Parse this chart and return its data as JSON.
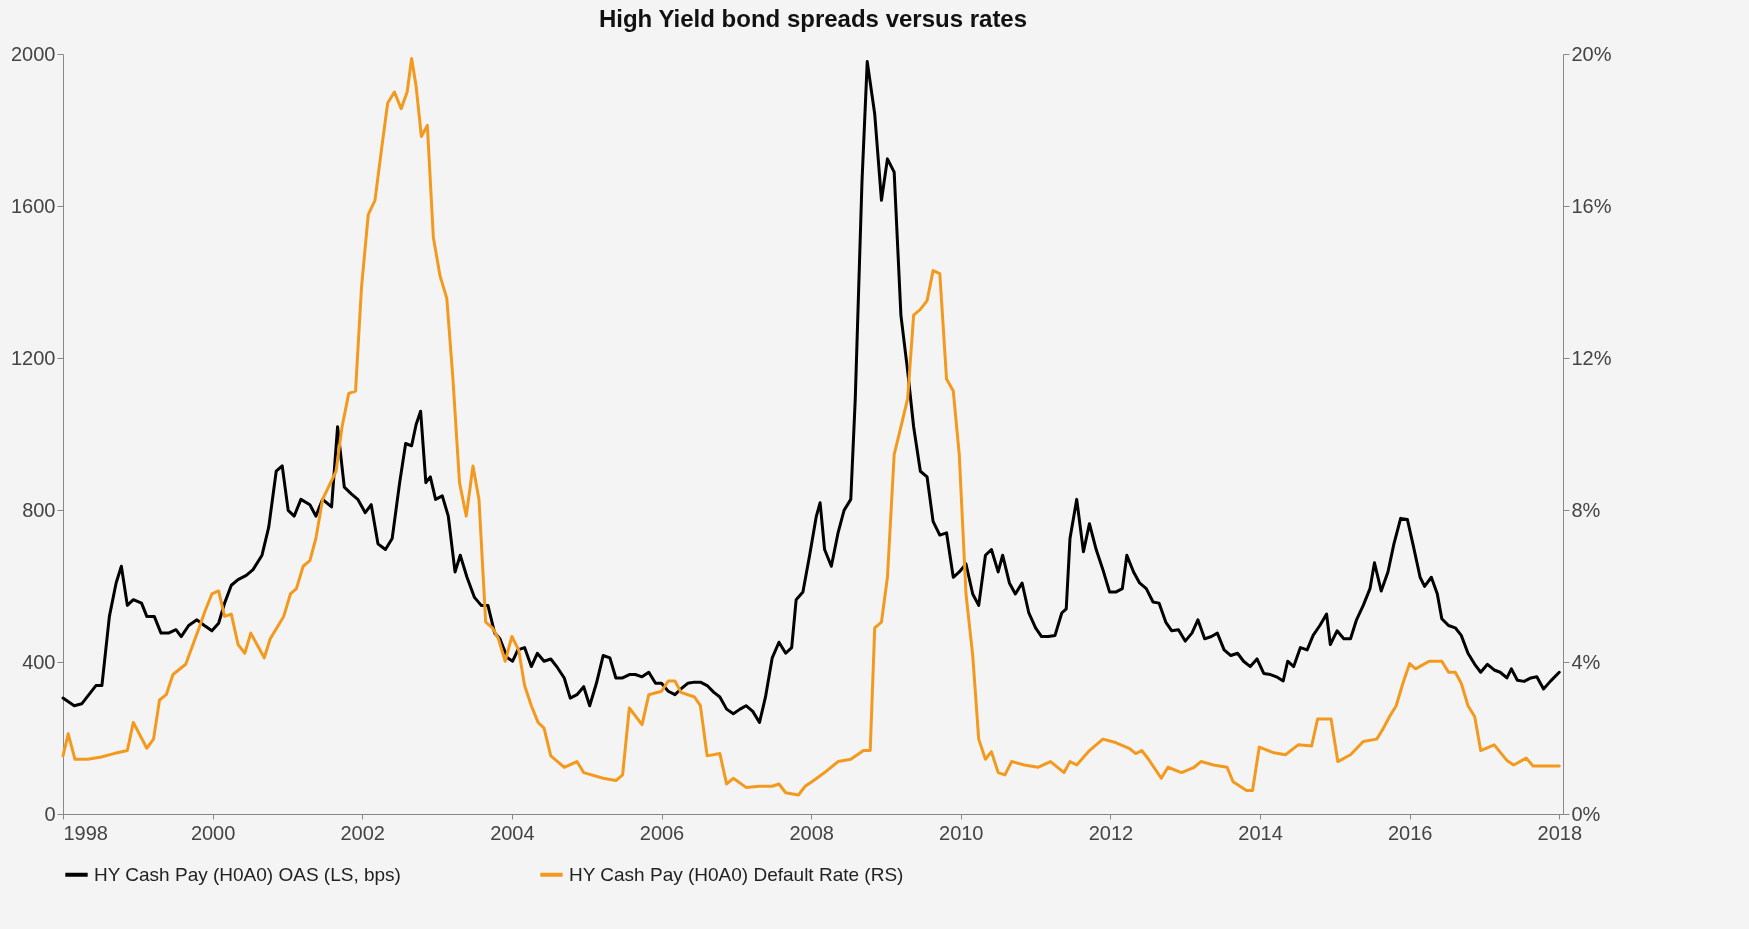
{
  "chart_data": {
    "type": "line",
    "title": "High Yield bond spreads versus rates",
    "xlim": [
      1998,
      2018.05
    ],
    "xticks": [
      1998,
      2000,
      2002,
      2004,
      2006,
      2008,
      2010,
      2012,
      2014,
      2016,
      2018
    ],
    "ylim": [
      0,
      2000
    ],
    "yticks": [
      0,
      400,
      800,
      1200,
      1600,
      2000
    ],
    "y2lim": [
      0,
      20
    ],
    "y2ticks": [
      {
        "value": 0,
        "label": "0%"
      },
      {
        "value": 4,
        "label": "4%"
      },
      {
        "value": 8,
        "label": "8%"
      },
      {
        "value": 12,
        "label": "12%"
      },
      {
        "value": 16,
        "label": "16%"
      },
      {
        "value": 20,
        "label": "20%"
      }
    ],
    "grid": false,
    "legend": "bottom",
    "marker": "none",
    "line_style": "solid",
    "series": [
      {
        "name": "HY Cash Pay (H0A0) OAS (LS, bps)",
        "color": "#000000",
        "x": [
          1998.0,
          1998.15,
          1998.25,
          1998.44,
          1998.52,
          1998.62,
          1998.71,
          1998.78,
          1998.86,
          1998.94,
          1999.05,
          1999.12,
          1999.22,
          1999.31,
          1999.41,
          1999.51,
          1999.58,
          1999.68,
          1999.79,
          1999.89,
          1999.99,
          2000.08,
          2000.16,
          2000.25,
          2000.34,
          2000.45,
          2000.54,
          2000.66,
          2000.75,
          2000.85,
          2000.93,
          2001.01,
          2001.09,
          2001.18,
          2001.3,
          2001.38,
          2001.47,
          2001.59,
          2001.67,
          2001.76,
          2001.85,
          2001.94,
          2002.04,
          2002.12,
          2002.21,
          2002.31,
          2002.4,
          2002.5,
          2002.58,
          2002.66,
          2002.72,
          2002.78,
          2002.85,
          2002.91,
          2002.98,
          2003.07,
          2003.15,
          2003.24,
          2003.31,
          2003.4,
          2003.5,
          2003.59,
          2003.68,
          2003.77,
          2003.84,
          2003.94,
          2004.01,
          2004.08,
          2004.17,
          2004.26,
          2004.34,
          2004.43,
          2004.52,
          2004.61,
          2004.7,
          2004.78,
          2004.87,
          2004.96,
          2005.04,
          2005.13,
          2005.22,
          2005.31,
          2005.39,
          2005.48,
          2005.57,
          2005.65,
          2005.74,
          2005.83,
          2005.92,
          2006.0,
          2006.09,
          2006.18,
          2006.26,
          2006.35,
          2006.44,
          2006.52,
          2006.61,
          2006.7,
          2006.78,
          2006.87,
          2006.96,
          2007.05,
          2007.13,
          2007.22,
          2007.31,
          2007.39,
          2007.48,
          2007.57,
          2007.66,
          2007.74,
          2007.8,
          2007.89,
          2007.98,
          2008.07,
          2008.12,
          2008.18,
          2008.27,
          2008.36,
          2008.44,
          2008.53,
          2008.59,
          2008.68,
          2008.75,
          2008.85,
          2008.94,
          2009.02,
          2009.11,
          2009.2,
          2009.29,
          2009.37,
          2009.46,
          2009.55,
          2009.63,
          2009.72,
          2009.81,
          2009.9,
          2009.98,
          2010.07,
          2010.16,
          2010.24,
          2010.33,
          2010.41,
          2010.5,
          2010.56,
          2010.65,
          2010.73,
          2010.82,
          2010.91,
          2011.0,
          2011.08,
          2011.17,
          2011.26,
          2011.35,
          2011.41,
          2011.46,
          2011.55,
          2011.64,
          2011.72,
          2011.81,
          2011.9,
          2011.99,
          2012.07,
          2012.16,
          2012.22,
          2012.31,
          2012.39,
          2012.48,
          2012.57,
          2012.65,
          2012.74,
          2012.82,
          2012.91,
          2013.0,
          2013.09,
          2013.17,
          2013.26,
          2013.35,
          2013.43,
          2013.52,
          2013.61,
          2013.7,
          2013.78,
          2013.87,
          2013.96,
          2014.05,
          2014.14,
          2014.22,
          2014.31,
          2014.37,
          2014.45,
          2014.54,
          2014.63,
          2014.71,
          2014.8,
          2014.89,
          2014.94,
          2015.03,
          2015.12,
          2015.21,
          2015.29,
          2015.38,
          2015.47,
          2015.53,
          2015.62,
          2015.71,
          2015.79,
          2015.88,
          2015.97,
          2016.05,
          2016.14,
          2016.2,
          2016.29,
          2016.37,
          2016.43,
          2016.52,
          2016.61,
          2016.69,
          2016.78,
          2016.87,
          2016.95,
          2017.04,
          2017.13,
          2017.21,
          2017.3,
          2017.36,
          2017.44,
          2017.53,
          2017.62,
          2017.7,
          2017.79,
          2017.88,
          2018.0
        ],
        "values": [
          305,
          285,
          290,
          338,
          338,
          520,
          608,
          652,
          549,
          564,
          555,
          520,
          520,
          476,
          476,
          485,
          467,
          496,
          511,
          496,
          482,
          502,
          555,
          602,
          617,
          628,
          643,
          681,
          755,
          902,
          916,
          799,
          784,
          828,
          814,
          784,
          828,
          808,
          1019,
          860,
          843,
          828,
          793,
          814,
          711,
          696,
          725,
          872,
          975,
          969,
          1025,
          1060,
          872,
          887,
          828,
          837,
          784,
          637,
          681,
          623,
          570,
          549,
          549,
          476,
          461,
          411,
          402,
          432,
          438,
          388,
          423,
          402,
          408,
          385,
          358,
          305,
          314,
          335,
          285,
          344,
          417,
          411,
          358,
          358,
          367,
          367,
          361,
          373,
          344,
          344,
          323,
          314,
          329,
          344,
          347,
          347,
          338,
          320,
          308,
          276,
          264,
          276,
          285,
          270,
          241,
          308,
          411,
          452,
          423,
          438,
          564,
          584,
          681,
          784,
          819,
          696,
          652,
          740,
          799,
          828,
          1093,
          1665,
          1980,
          1842,
          1615,
          1724,
          1689,
          1313,
          1166,
          1019,
          902,
          887,
          770,
          734,
          740,
          623,
          637,
          658,
          579,
          549,
          681,
          696,
          637,
          681,
          608,
          579,
          608,
          529,
          490,
          467,
          467,
          470,
          529,
          540,
          725,
          828,
          690,
          764,
          696,
          643,
          584,
          584,
          593,
          681,
          637,
          608,
          593,
          558,
          555,
          505,
          482,
          485,
          455,
          476,
          511,
          461,
          467,
          476,
          432,
          417,
          423,
          402,
          388,
          408,
          370,
          367,
          361,
          350,
          402,
          388,
          438,
          432,
          470,
          496,
          526,
          446,
          482,
          461,
          461,
          511,
          549,
          593,
          661,
          587,
          637,
          711,
          778,
          775,
          705,
          623,
          599,
          623,
          579,
          514,
          496,
          490,
          470,
          423,
          394,
          373,
          394,
          379,
          373,
          358,
          382,
          352,
          349,
          358,
          361,
          329,
          349,
          373
        ]
      },
      {
        "name": "HY Cash Pay (H0A0) Default Rate (RS)",
        "color": "#f39a1e",
        "axis": "y2",
        "x": [
          1998.0,
          1998.07,
          1998.16,
          1998.33,
          1998.51,
          1998.68,
          1998.86,
          1998.94,
          1999.12,
          1999.21,
          1999.29,
          1999.38,
          1999.47,
          1999.64,
          1999.82,
          1999.9,
          1999.99,
          2000.08,
          2000.16,
          2000.25,
          2000.34,
          2000.43,
          2000.51,
          2000.69,
          2000.77,
          2000.95,
          2001.04,
          2001.12,
          2001.21,
          2001.3,
          2001.38,
          2001.47,
          2001.65,
          2001.73,
          2001.82,
          2001.91,
          2001.99,
          2002.08,
          2002.17,
          2002.26,
          2002.34,
          2002.43,
          2002.52,
          2002.6,
          2002.66,
          2002.72,
          2002.79,
          2002.87,
          2002.95,
          2003.04,
          2003.13,
          2003.21,
          2003.3,
          2003.39,
          2003.48,
          2003.56,
          2003.65,
          2003.74,
          2003.82,
          2003.91,
          2004.0,
          2004.09,
          2004.17,
          2004.26,
          2004.35,
          2004.43,
          2004.52,
          2004.7,
          2004.87,
          2004.96,
          2005.22,
          2005.39,
          2005.48,
          2005.57,
          2005.74,
          2005.83,
          2006.0,
          2006.09,
          2006.18,
          2006.26,
          2006.44,
          2006.52,
          2006.61,
          2006.78,
          2006.87,
          2006.96,
          2007.13,
          2007.31,
          2007.48,
          2007.57,
          2007.66,
          2007.83,
          2007.92,
          2008.01,
          2008.18,
          2008.36,
          2008.53,
          2008.7,
          2008.79,
          2008.85,
          2008.94,
          2009.02,
          2009.11,
          2009.2,
          2009.29,
          2009.37,
          2009.46,
          2009.55,
          2009.63,
          2009.72,
          2009.81,
          2009.9,
          2009.98,
          2010.07,
          2010.16,
          2010.24,
          2010.33,
          2010.41,
          2010.5,
          2010.59,
          2010.68,
          2010.85,
          2011.03,
          2011.2,
          2011.38,
          2011.46,
          2011.55,
          2011.72,
          2011.9,
          2012.07,
          2012.25,
          2012.34,
          2012.42,
          2012.51,
          2012.68,
          2012.77,
          2012.95,
          2013.12,
          2013.21,
          2013.38,
          2013.56,
          2013.64,
          2013.82,
          2013.9,
          2013.99,
          2014.17,
          2014.34,
          2014.51,
          2014.69,
          2014.77,
          2014.95,
          2015.04,
          2015.21,
          2015.38,
          2015.56,
          2015.65,
          2015.73,
          2015.82,
          2015.91,
          2016.0,
          2016.08,
          2016.26,
          2016.43,
          2016.52,
          2016.61,
          2016.69,
          2016.78,
          2016.87,
          2016.95,
          2017.13,
          2017.3,
          2017.39,
          2017.56,
          2017.65,
          2017.83,
          2018.0
        ],
        "values": [
          1.53,
          2.11,
          1.44,
          1.44,
          1.5,
          1.59,
          1.67,
          2.41,
          1.73,
          1.97,
          3.0,
          3.14,
          3.67,
          3.94,
          4.9,
          5.35,
          5.79,
          5.87,
          5.2,
          5.26,
          4.46,
          4.23,
          4.76,
          4.11,
          4.61,
          5.2,
          5.79,
          5.93,
          6.52,
          6.67,
          7.25,
          8.28,
          9.02,
          10.19,
          11.07,
          11.13,
          13.86,
          15.77,
          16.15,
          17.53,
          18.71,
          19.0,
          18.56,
          19.0,
          19.88,
          19.15,
          17.83,
          18.12,
          15.18,
          14.16,
          13.57,
          11.51,
          8.72,
          7.84,
          9.16,
          8.28,
          5.05,
          4.9,
          4.61,
          4.02,
          4.67,
          4.32,
          3.38,
          2.85,
          2.41,
          2.26,
          1.53,
          1.23,
          1.38,
          1.09,
          0.94,
          0.88,
          1.03,
          2.79,
          2.35,
          3.14,
          3.23,
          3.5,
          3.5,
          3.2,
          3.08,
          2.85,
          1.53,
          1.59,
          0.79,
          0.94,
          0.7,
          0.73,
          0.73,
          0.79,
          0.56,
          0.5,
          0.73,
          0.85,
          1.09,
          1.38,
          1.44,
          1.67,
          1.67,
          4.9,
          5.05,
          6.23,
          9.46,
          10.19,
          10.93,
          13.13,
          13.28,
          13.51,
          14.3,
          14.22,
          11.45,
          11.13,
          9.46,
          5.79,
          4.17,
          1.97,
          1.44,
          1.64,
          1.09,
          1.03,
          1.38,
          1.29,
          1.23,
          1.38,
          1.09,
          1.38,
          1.29,
          1.67,
          1.97,
          1.88,
          1.73,
          1.59,
          1.67,
          1.44,
          0.94,
          1.23,
          1.09,
          1.23,
          1.38,
          1.29,
          1.23,
          0.85,
          0.62,
          0.62,
          1.76,
          1.62,
          1.56,
          1.82,
          1.79,
          2.5,
          2.5,
          1.38,
          1.56,
          1.91,
          1.97,
          2.26,
          2.56,
          2.85,
          3.44,
          3.96,
          3.82,
          4.02,
          4.02,
          3.73,
          3.73,
          3.44,
          2.85,
          2.56,
          1.67,
          1.82,
          1.41,
          1.29,
          1.47,
          1.26,
          1.26,
          1.26
        ]
      }
    ]
  }
}
